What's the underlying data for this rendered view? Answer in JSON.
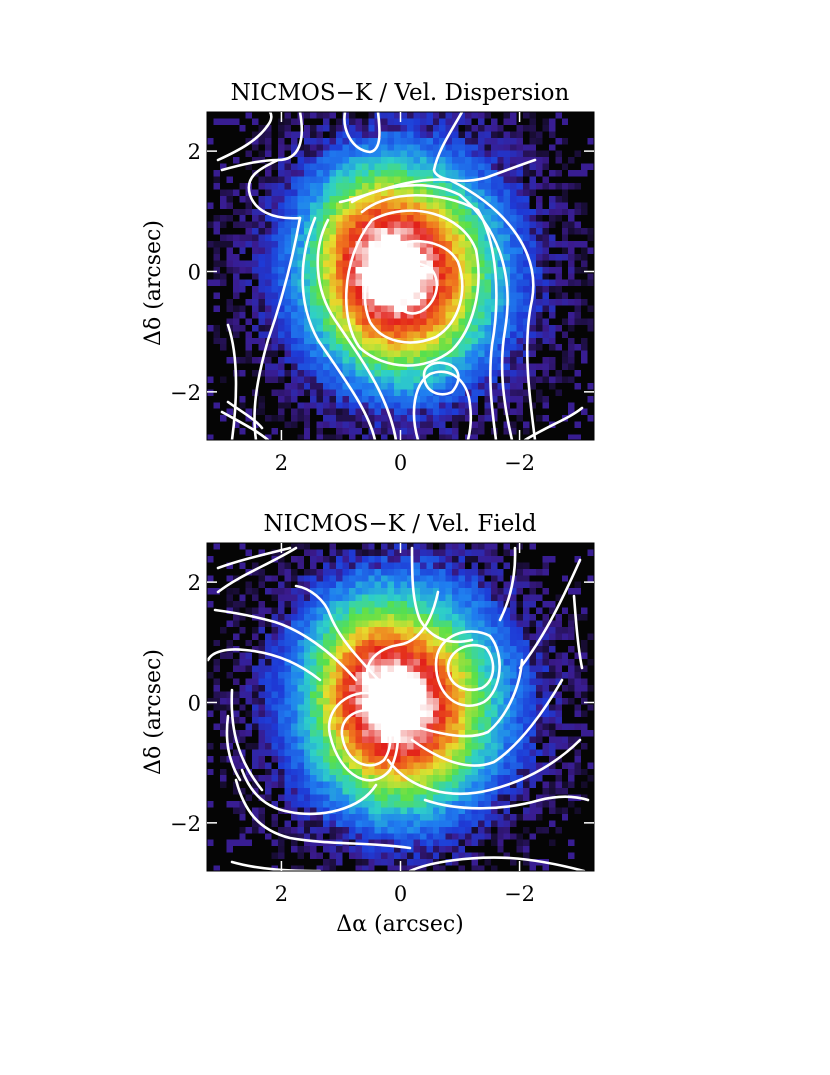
{
  "chart_data": [
    {
      "type": "heatmap",
      "title": "NICMOS−K / Vel. Dispersion",
      "xlabel": "",
      "ylabel": "Δδ (arcsec)",
      "xlim": [
        3.25,
        -3.25
      ],
      "ylim": [
        -2.8,
        2.65
      ],
      "x_ticks": [
        2,
        0,
        -2
      ],
      "x_tick_labels": [
        "2",
        "0",
        "−2"
      ],
      "y_ticks": [
        2,
        0,
        -2
      ],
      "y_tick_labels": [
        "2",
        "0",
        "−2"
      ],
      "image": "NICMOS K-band surface brightness map (false colour, black-blue-green-yellow-red-white)",
      "overlay": "velocity dispersion contours (white)",
      "colorscale": [
        "#050505",
        "#3a1a8c",
        "#1e3ad6",
        "#1f7ff0",
        "#2ed0c8",
        "#58e04a",
        "#e6e02e",
        "#f07a1e",
        "#e2201a",
        "#ffffff"
      ],
      "sources": [
        {
          "x": 0.0,
          "y": -0.1,
          "sx": 0.95,
          "sy": 1.1,
          "amp": 0.7
        },
        {
          "x": -0.1,
          "y": 0.15,
          "sx": 1.9,
          "sy": 2.0,
          "amp": 0.35
        },
        {
          "x": 0.02,
          "y": 0.0,
          "sx": 0.16,
          "sy": 0.16,
          "amp": 0.55
        },
        {
          "x": 0.7,
          "y": 0.6,
          "sx": 0.55,
          "sy": 0.9,
          "amp": 0.14
        }
      ]
    },
    {
      "type": "heatmap",
      "title": "NICMOS−K / Vel. Field",
      "xlabel": "Δα (arcsec)",
      "ylabel": "Δδ (arcsec)",
      "xlim": [
        3.25,
        -3.25
      ],
      "ylim": [
        -2.8,
        2.65
      ],
      "x_ticks": [
        2,
        0,
        -2
      ],
      "x_tick_labels": [
        "2",
        "0",
        "−2"
      ],
      "y_ticks": [
        2,
        0,
        -2
      ],
      "y_tick_labels": [
        "2",
        "0",
        "−2"
      ],
      "image": "NICMOS K-band surface brightness map (false colour, black-blue-green-yellow-red-white)",
      "overlay": "velocity field contours (white)",
      "colorscale": [
        "#050505",
        "#3a1a8c",
        "#1e3ad6",
        "#1f7ff0",
        "#2ed0c8",
        "#58e04a",
        "#e6e02e",
        "#f07a1e",
        "#e2201a",
        "#ffffff"
      ],
      "sources": [
        {
          "x": 0.0,
          "y": -0.1,
          "sx": 0.95,
          "sy": 1.1,
          "amp": 0.7
        },
        {
          "x": -0.1,
          "y": 0.15,
          "sx": 1.9,
          "sy": 2.0,
          "amp": 0.35
        },
        {
          "x": 0.02,
          "y": 0.0,
          "sx": 0.16,
          "sy": 0.16,
          "amp": 0.55
        },
        {
          "x": 0.7,
          "y": 0.6,
          "sx": 0.55,
          "sy": 0.9,
          "amp": 0.14
        }
      ]
    }
  ]
}
